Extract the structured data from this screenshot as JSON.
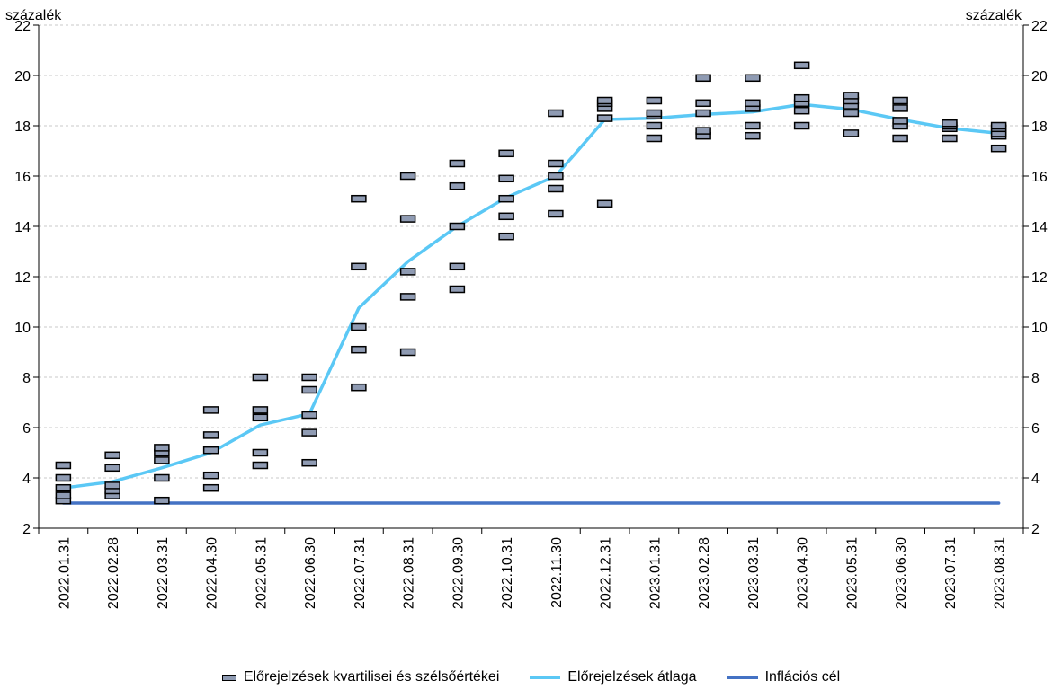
{
  "chart_data": {
    "type": "scatter",
    "ylabel_left": "százalék",
    "ylabel_right": "százalék",
    "ylim": [
      2,
      22
    ],
    "yticks": [
      2,
      4,
      6,
      8,
      10,
      12,
      14,
      16,
      18,
      20,
      22
    ],
    "grid": true,
    "categories": [
      "2022.01.31",
      "2022.02.28",
      "2022.03.31",
      "2022.04.30",
      "2022.05.31",
      "2022.06.30",
      "2022.07.31",
      "2022.08.31",
      "2022.09.30",
      "2022.10.31",
      "2022.11.30",
      "2022.12.31",
      "2023.01.31",
      "2023.02.28",
      "2023.03.31",
      "2023.04.30",
      "2023.05.31",
      "2023.06.30",
      "2023.07.31",
      "2023.08.31"
    ],
    "series": [
      {
        "name": "Előrejelzések kvartilisei és szélsőértékei",
        "kind": "markers",
        "color": "#8f9bb3",
        "values": [
          [
            3.1,
            3.3,
            3.6,
            4.0,
            4.5
          ],
          [
            3.3,
            3.5,
            3.7,
            4.4,
            4.9
          ],
          [
            3.1,
            4.0,
            4.7,
            5.0,
            5.2
          ],
          [
            3.6,
            4.1,
            5.1,
            5.7,
            6.7
          ],
          [
            4.5,
            5.0,
            6.4,
            6.7,
            8.0
          ],
          [
            4.6,
            5.8,
            6.5,
            7.5,
            8.0
          ],
          [
            7.6,
            9.1,
            10.0,
            12.4,
            15.1
          ],
          [
            9.0,
            11.2,
            12.2,
            14.3,
            16.0
          ],
          [
            11.5,
            12.4,
            14.0,
            15.6,
            16.5
          ],
          [
            13.6,
            14.4,
            15.1,
            15.9,
            16.9
          ],
          [
            14.5,
            15.5,
            16.0,
            16.5,
            18.5
          ],
          [
            14.9,
            18.3,
            18.7,
            18.9,
            19.0
          ],
          [
            17.5,
            18.0,
            18.4,
            18.5,
            19.0
          ],
          [
            17.6,
            17.8,
            18.5,
            18.9,
            19.9
          ],
          [
            17.6,
            18.0,
            18.7,
            18.9,
            19.9
          ],
          [
            18.0,
            18.6,
            18.9,
            19.1,
            20.4
          ],
          [
            17.7,
            18.5,
            18.8,
            19.0,
            19.2
          ],
          [
            17.5,
            18.0,
            18.2,
            18.7,
            19.0
          ],
          [
            17.5,
            17.9,
            18.0,
            18.1,
            18.1
          ],
          [
            17.1,
            17.6,
            17.7,
            17.9,
            18.0
          ]
        ]
      },
      {
        "name": "Előrejelzések átlaga",
        "kind": "line",
        "color": "#5bc8f5",
        "values": [
          3.6,
          3.85,
          4.4,
          5.0,
          6.1,
          6.55,
          10.75,
          12.6,
          14.0,
          15.15,
          16.0,
          18.25,
          18.3,
          18.45,
          18.55,
          18.85,
          18.65,
          18.25,
          17.9,
          17.7
        ]
      },
      {
        "name": "Inflációs cél",
        "kind": "line",
        "color": "#4472c4",
        "values": [
          3,
          3,
          3,
          3,
          3,
          3,
          3,
          3,
          3,
          3,
          3,
          3,
          3,
          3,
          3,
          3,
          3,
          3,
          3,
          3
        ]
      }
    ]
  }
}
